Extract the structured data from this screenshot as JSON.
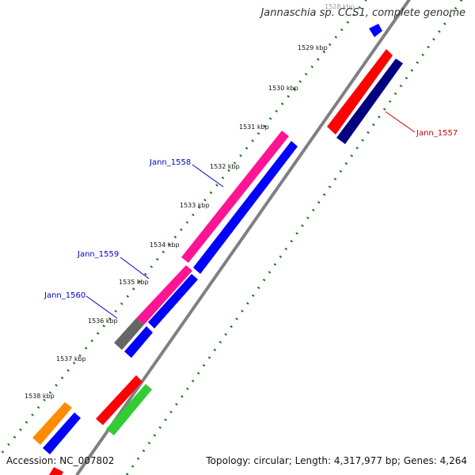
{
  "title": "Jannaschia sp. CCS1, complete genome",
  "accession": "Accession: NC_007802",
  "topology": "Topology: circular; Length: 4,317,977 bp; Genes: 4,264",
  "kbp_labels": [
    "1528 kbp",
    "1529 kbp",
    "1530 kbp",
    "1531 kbp",
    "1532 kbp",
    "1533 kbp",
    "1534 kbp",
    "1535 kbp",
    "1536 kbp",
    "1537 kbp",
    "1538 kbp"
  ],
  "gene_labels": [
    {
      "text": "Jann_1557",
      "color": "#cc0000"
    },
    {
      "text": "Jann_1558",
      "color": "#0000cc"
    },
    {
      "text": "Jann_1559",
      "color": "#0000cc"
    },
    {
      "text": "Jann_1560",
      "color": "#0000cc"
    }
  ],
  "colors": {
    "red": "#ff0000",
    "navy": "#000080",
    "blue": "#0000ff",
    "magenta": "#ff1493",
    "gray": "#666666",
    "orange": "#ff8c00",
    "green": "#33cc33",
    "tick": "#1a7a1a",
    "backbone": "#808080"
  }
}
